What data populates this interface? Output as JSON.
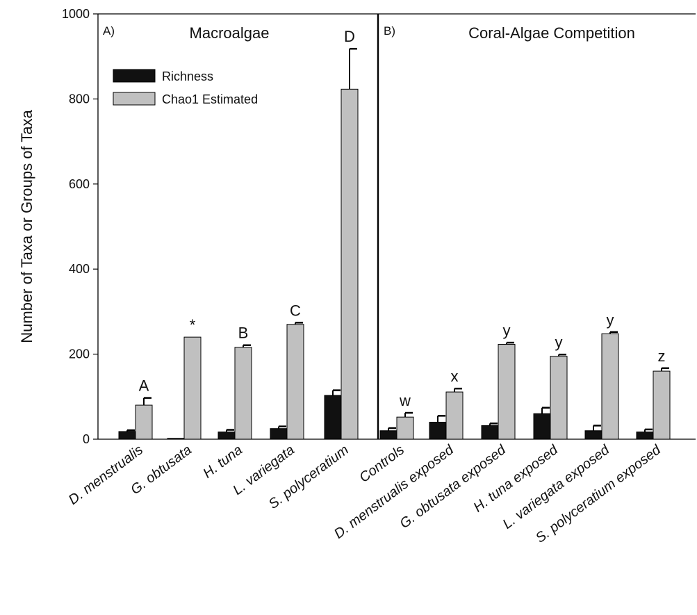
{
  "chart_data": {
    "type": "bar",
    "ylabel": "Number of Taxa or Groups of Taxa",
    "ylim": [
      0,
      1000
    ],
    "yticks": [
      0,
      200,
      400,
      600,
      800,
      1000
    ],
    "panels": [
      {
        "letter": "A)",
        "title": "Macroalgae"
      },
      {
        "letter": "B)",
        "title": "Coral-Algae Competition"
      }
    ],
    "categories": [
      "D. menstrualis",
      "G. obtusata",
      "H. tuna",
      "L. variegata",
      "S. polyceratium",
      "Controls",
      "D. menstrualis exposed",
      "G. obtusata exposed",
      "H. tuna exposed",
      "L. variegata exposed",
      "S. polyceratium exposed"
    ],
    "series": [
      {
        "name": "Richness",
        "color": "#111111",
        "values": [
          18,
          2,
          17,
          25,
          103,
          20,
          40,
          32,
          60,
          20,
          17
        ],
        "errors": [
          3,
          0,
          5,
          5,
          12,
          6,
          15,
          5,
          14,
          12,
          6
        ]
      },
      {
        "name": "Chao1 Estimated",
        "color": "#c0c0c0",
        "values": [
          80,
          240,
          216,
          270,
          823,
          52,
          111,
          223,
          195,
          248,
          160
        ],
        "errors": [
          17,
          0,
          5,
          4,
          95,
          10,
          8,
          4,
          4,
          4,
          7
        ]
      }
    ],
    "significance": [
      "A",
      "*",
      "B",
      "C",
      "D",
      "w",
      "x",
      "y",
      "y",
      "y",
      "z"
    ],
    "legend_position": "top-left"
  }
}
